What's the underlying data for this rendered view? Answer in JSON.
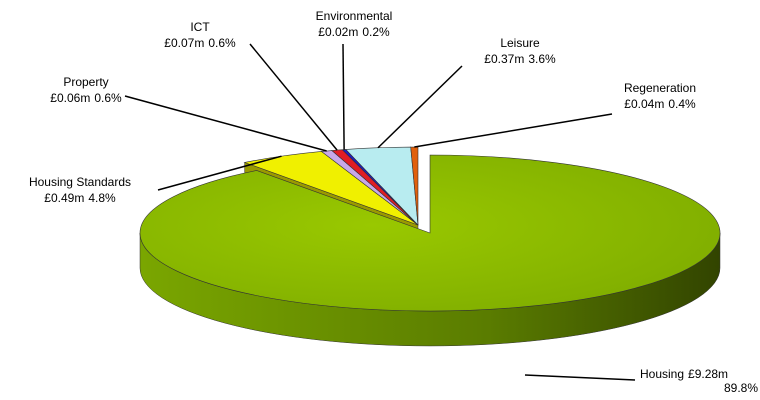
{
  "chart_data": {
    "type": "pie",
    "categories": [
      "Housing",
      "Housing Standards",
      "Property",
      "ICT",
      "Environmental",
      "Leisure",
      "Regeneration"
    ],
    "values": [
      89.8,
      4.8,
      0.6,
      0.6,
      0.2,
      3.6,
      0.4
    ],
    "value_labels": [
      "89.8%",
      "4.8%",
      "0.6%",
      "0.6%",
      "0.2%",
      "3.6%",
      "0.4%"
    ],
    "amount_labels": [
      "£9.28m",
      "£0.49m",
      "£0.06m",
      "£0.07m",
      "£0.02m",
      "£0.37m",
      "£0.04m"
    ],
    "colors": [
      "#8cbc00",
      "#f0f000",
      "#c8a8e8",
      "#e01c24",
      "#1c1cc0",
      "#b8ecf0",
      "#e0600c"
    ],
    "side_colors": [
      "#5a7a00",
      "#9a9a00",
      "#8870a0",
      "#901010",
      "#101080",
      "#80b0b4",
      "#903c08"
    ]
  }
}
